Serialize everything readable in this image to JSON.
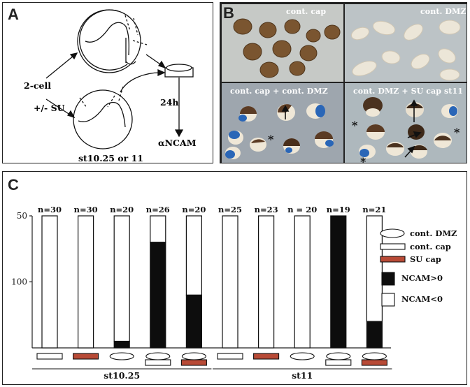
{
  "panel_a": {
    "label": "A",
    "two_cell": "2-cell",
    "su_treatment": "+/- SU",
    "time": "24h",
    "stage": "st10.25 or 11",
    "antibody": "αNCAM"
  },
  "panel_b": {
    "label": "B",
    "quadrants": [
      {
        "label": "cont. cap"
      },
      {
        "label": "cont. DMZ"
      },
      {
        "label": "cont. cap + cont. DMZ"
      },
      {
        "label": "cont. DMZ + SU cap st11"
      }
    ],
    "asterisk": "*"
  },
  "panel_c": {
    "label": "C",
    "y_ticks": [
      "100",
      "50"
    ],
    "legend": {
      "cont_dmz": "cont. DMZ",
      "cont_cap": "cont. cap",
      "su_cap": "SU cap",
      "ncam_pos": "NCAM>0",
      "ncam_neg": "NCAM<0"
    },
    "groups": [
      "st10.25",
      "st11"
    ]
  },
  "colors": {
    "su_cap": "#b84a36",
    "ncam_pos": "#0d0d0d",
    "border": "#222222"
  },
  "chart_data": {
    "type": "bar",
    "stacked": true,
    "ylim": [
      0,
      100
    ],
    "yticks": [
      50,
      100
    ],
    "categories": [
      "n=30",
      "n=30",
      "n=20",
      "n=26",
      "n=20",
      "n=25",
      "n=23",
      "n = 20",
      "n=19",
      "n=21"
    ],
    "x_groups": [
      {
        "name": "st10.25",
        "categories": [
          0,
          1,
          2,
          3,
          4
        ]
      },
      {
        "name": "st11",
        "categories": [
          5,
          6,
          7,
          8,
          9
        ]
      }
    ],
    "explant_icons": [
      [
        "cap"
      ],
      [
        "su-cap"
      ],
      [
        "dmz"
      ],
      [
        "dmz",
        "cap"
      ],
      [
        "dmz",
        "su-cap"
      ],
      [
        "cap"
      ],
      [
        "su-cap"
      ],
      [
        "dmz"
      ],
      [
        "dmz",
        "cap"
      ],
      [
        "dmz",
        "su-cap"
      ]
    ],
    "series": [
      {
        "name": "NCAM>0",
        "values": [
          0,
          0,
          5,
          80,
          40,
          0,
          0,
          0,
          100,
          20
        ]
      },
      {
        "name": "NCAM<0",
        "values": [
          100,
          100,
          95,
          20,
          60,
          100,
          100,
          100,
          0,
          80
        ]
      }
    ]
  }
}
